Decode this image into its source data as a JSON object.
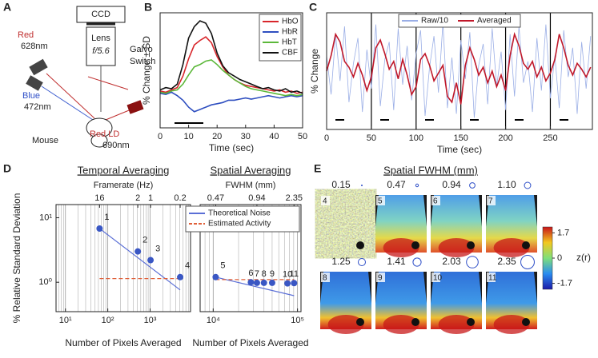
{
  "panel_labels": [
    "A",
    "B",
    "C",
    "D",
    "E"
  ],
  "diagram": {
    "camera": "CCD",
    "lens": "Lens",
    "aperture": "f/5.6",
    "galvo": [
      "Galvo",
      "Switch"
    ],
    "red_led": [
      "Red",
      "628nm"
    ],
    "blue_led": [
      "Blue",
      "472nm"
    ],
    "mouse": "Mouse",
    "red_ld": [
      "Red LD",
      "690nm"
    ]
  },
  "chart_data": [
    {
      "type": "line",
      "xlabel": "Time (sec)",
      "ylabel": "% Change ± SD",
      "legend": "upper right",
      "x": [
        0,
        2,
        4,
        6,
        8,
        10,
        12,
        14,
        16,
        18,
        20,
        22,
        24,
        26,
        28,
        30,
        32,
        34,
        36,
        38,
        40,
        42,
        44,
        46,
        48,
        50
      ],
      "xlim": [
        0,
        50
      ],
      "ylim": [
        -3,
        7
      ],
      "xticks": [
        0,
        10,
        20,
        30,
        40,
        50
      ],
      "series": [
        {
          "name": "HbO",
          "color": "#d8262b",
          "values": [
            0.2,
            0.1,
            0.3,
            0.5,
            1.5,
            3.0,
            4.2,
            4.6,
            4.9,
            4.4,
            3.2,
            2.3,
            1.6,
            1.2,
            0.9,
            0.7,
            0.6,
            0.5,
            0.4,
            0.3,
            0.2,
            0.3,
            0.1,
            0.2,
            0.0,
            0.1
          ]
        },
        {
          "name": "HbR",
          "color": "#2f4fc0",
          "values": [
            0.0,
            -0.1,
            0.1,
            -0.2,
            -0.6,
            -1.2,
            -1.6,
            -1.4,
            -1.2,
            -1.0,
            -0.9,
            -0.8,
            -0.6,
            -0.6,
            -0.5,
            -0.4,
            -0.5,
            -0.4,
            -0.3,
            -0.2,
            -0.3,
            -0.4,
            -0.3,
            -0.2,
            -0.3,
            -0.2
          ]
        },
        {
          "name": "HbT",
          "color": "#5cb83a",
          "values": [
            0.1,
            0.0,
            0.2,
            0.3,
            0.8,
            1.6,
            2.3,
            2.5,
            2.8,
            2.9,
            2.5,
            2.0,
            1.6,
            1.2,
            0.9,
            0.6,
            0.4,
            0.3,
            0.2,
            0.1,
            0.0,
            -0.1,
            -0.2,
            -0.1,
            -0.2,
            -0.1
          ]
        },
        {
          "name": "CBF",
          "color": "#111111",
          "values": [
            0.3,
            0.5,
            0.4,
            0.8,
            2.5,
            4.8,
            5.8,
            6.3,
            6.1,
            5.2,
            3.5,
            2.4,
            1.8,
            1.5,
            1.2,
            1.0,
            0.8,
            0.6,
            0.4,
            0.5,
            0.3,
            0.2,
            0.4,
            0.1,
            0.2,
            0.0
          ]
        }
      ]
    },
    {
      "type": "line",
      "xlabel": "Time (sec)",
      "ylabel": "% Change",
      "legend": "upper center",
      "epoch_lines": true,
      "x": [
        0,
        5,
        10,
        15,
        20,
        25,
        30,
        35,
        40,
        45,
        50,
        55,
        60,
        65,
        70,
        75,
        80,
        85,
        90,
        95,
        100,
        105,
        110,
        115,
        120,
        125,
        130,
        135,
        140,
        145,
        150,
        155,
        160,
        165,
        170,
        175,
        180,
        185,
        190,
        195,
        200,
        205,
        210,
        215,
        220,
        225,
        230,
        235,
        240,
        245,
        250,
        255,
        260,
        265,
        270,
        275,
        280,
        285,
        290,
        295
      ],
      "xlim": [
        0,
        297
      ],
      "ylim": [
        -3,
        3
      ],
      "xticks": [
        0,
        50,
        100,
        150,
        200,
        250
      ],
      "series": [
        {
          "name": "Raw/10",
          "color": "#9aaee6",
          "values": [
            0.8,
            -1.2,
            1.9,
            -0.5,
            2.3,
            -1.6,
            0.4,
            1.7,
            -2.1,
            1.1,
            -0.9,
            2.4,
            -1.8,
            0.6,
            1.5,
            -2.0,
            2.2,
            -0.7,
            1.3,
            -1.5,
            0.9,
            2.1,
            -2.3,
            0.2,
            1.8,
            -1.1,
            2.5,
            -1.9,
            0.7,
            -2.2,
            1.6,
            -0.4,
            2.0,
            -2.4,
            0.3,
            1.4,
            -1.7,
            2.2,
            -0.8,
            1.0,
            -2.0,
            1.9,
            -1.3,
            2.3,
            -0.6,
            0.5,
            -2.1,
            1.7,
            -1.0,
            2.4,
            -1.4,
            0.8,
            -1.9,
            2.1,
            -0.3,
            1.2,
            -2.2,
            1.5,
            -0.9,
            1.8
          ]
        },
        {
          "name": "Averaged",
          "color": "#c0182a",
          "values": [
            0.0,
            0.8,
            1.9,
            1.5,
            0.5,
            0.2,
            -0.3,
            0.4,
            -0.2,
            -1.0,
            -0.3,
            1.2,
            1.6,
            0.9,
            0.1,
            0.5,
            -0.4,
            0.6,
            -0.2,
            -1.2,
            -0.8,
            0.6,
            0.9,
            0.3,
            -0.5,
            -0.1,
            0.3,
            -1.3,
            -1.6,
            -0.6,
            -1.7,
            0.3,
            1.2,
            0.6,
            -0.2,
            0.2,
            -0.6,
            0.0,
            -0.8,
            -0.2,
            -1.0,
            0.8,
            1.9,
            1.3,
            0.4,
            0.1,
            0.5,
            -0.3,
            0.2,
            -0.5,
            -0.1,
            0.6,
            1.9,
            1.2,
            0.3,
            -0.2,
            0.4,
            0.1,
            -0.3,
            0.2
          ]
        }
      ]
    },
    {
      "type": "scatter",
      "title": "Temporal Averaging",
      "top_label": "Framerate (Hz)",
      "xlabel": "Number of Pixels Averaged",
      "ylabel": "% Relative Standard Deviation",
      "log_x": true,
      "log_y": true,
      "grid": true,
      "color": "#3a57c4",
      "x": [
        64,
        512,
        1024,
        5120
      ],
      "values": [
        6.8,
        3.0,
        2.2,
        1.2
      ],
      "point_labels": [
        "1",
        "2",
        "3",
        "4"
      ],
      "xlim": [
        6,
        9000
      ],
      "ylim": [
        0.35,
        16
      ],
      "xticks": [
        {
          "value": 10,
          "label": "10¹"
        },
        {
          "value": 100,
          "label": "10²"
        },
        {
          "value": 1000,
          "label": "10³"
        }
      ],
      "minor_xticks": [
        7,
        8,
        9,
        20,
        30,
        40,
        50,
        60,
        70,
        80,
        90,
        200,
        300,
        400,
        500,
        600,
        700,
        800,
        900,
        2000,
        3000,
        4000,
        5000,
        6000,
        7000,
        8000
      ],
      "yticks": [
        {
          "value": 1,
          "label": "10⁰"
        },
        {
          "value": 10,
          "label": "10¹"
        }
      ],
      "top_ticks": [
        {
          "value": 64,
          "label": "16"
        },
        {
          "value": 512,
          "label": "2"
        },
        {
          "value": 1024,
          "label": "1"
        },
        {
          "value": 5120,
          "label": "0.2"
        }
      ],
      "lines": [
        {
          "color": "#5b6fd6",
          "x": [
            64,
            5120
          ],
          "values": [
            6.8,
            0.76
          ]
        },
        {
          "color": "#e0603a",
          "dashed": true,
          "x": [
            64,
            5120
          ],
          "values": [
            1.14,
            1.14
          ]
        }
      ]
    },
    {
      "type": "scatter",
      "title": "Spatial Averaging",
      "top_label": "FWHM (mm)",
      "xlabel": "Number of Pixels Averaged",
      "legend": "upper right",
      "log_x": true,
      "log_y": true,
      "grid": true,
      "color": "#3a57c4",
      "x": [
        10700,
        28000,
        33000,
        40000,
        50000,
        76000,
        91000
      ],
      "values": [
        1.2,
        1.0,
        0.98,
        0.98,
        0.98,
        0.96,
        0.97
      ],
      "point_labels": [
        "5",
        "6",
        "7",
        "8",
        "9",
        "10",
        "11"
      ],
      "xlim": [
        7000,
        110000
      ],
      "ylim": [
        0.35,
        16
      ],
      "xticks": [
        {
          "value": 10000,
          "label": "10⁴"
        },
        {
          "value": 100000,
          "label": "10⁵"
        }
      ],
      "minor_xticks": [
        8000,
        9000,
        20000,
        30000,
        40000,
        50000,
        60000,
        70000,
        80000,
        90000
      ],
      "top_ticks": [
        {
          "value": 10700,
          "label": "0.47"
        },
        {
          "value": 33000,
          "label": "0.94"
        },
        {
          "value": 91000,
          "label": "2.35"
        }
      ],
      "lines": [
        {
          "name": "Theoretical Noise",
          "color": "#5b6fd6",
          "x": [
            10700,
            91000
          ],
          "values": [
            1.2,
            0.62
          ]
        },
        {
          "name": "Estimated Activity",
          "color": "#e0603a",
          "dashed": true,
          "x": [
            10700,
            91000
          ],
          "values": [
            1.1,
            1.1
          ]
        }
      ]
    }
  ],
  "panel_e": {
    "title": "Spatial FWHM (mm)",
    "fwhm": [
      0.15,
      0.47,
      0.94,
      {
        "value": 1.1,
        "label": "1.10"
      },
      1.25,
      1.41,
      2.03,
      2.35
    ],
    "tile_labels": [
      "4",
      "5",
      "6",
      "7",
      "8",
      "9",
      "10",
      "11"
    ],
    "clim": [
      -2.1,
      2.1
    ],
    "colorbar_ticks": [
      1.7,
      0,
      -1.7
    ],
    "colorbar_label": "z(r)"
  }
}
